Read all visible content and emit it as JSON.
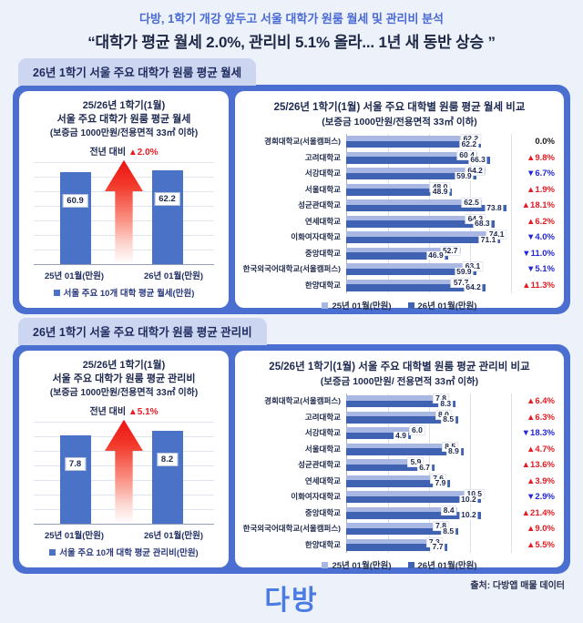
{
  "header": {
    "kicker": "다방, 1학기 개강 앞두고 서울 대학가 원룸 월세 및 관리비 분석",
    "headline": "“대학가 평균 월세 2.0%, 관리비 5.1% 올라... 1년 새 동반 상승 ”"
  },
  "colors": {
    "page_bg": "#edf1f9",
    "panel_blue": "#4a6fd1",
    "tab_bg": "#ccd6f1",
    "summary_bar": "#4a73c8",
    "series_prev": "#a9b8e3",
    "series_curr": "#3f63b2",
    "up_red": "#e31b22",
    "down_blue": "#2326d6",
    "flat_black": "#1b1b1b",
    "kicker_blue": "#4a6bd6",
    "logo_blue": "#4a7ce4"
  },
  "sections": [
    {
      "tab": "26년 1학기 서울 주요 대학가 원룸 평균 월세",
      "mini": {
        "title_lines": [
          "25/26년 1학기(1월)",
          "서울 주요 대학가 원룸 평균 월세",
          "(보증금 1000만원/전용면적 33㎡ 이하)"
        ],
        "yoy_label": "전년 대비",
        "yoy_change": "▲2.0%",
        "categories": [
          "25년 01월(만원)",
          "26년 01월(만원)"
        ],
        "values": [
          "60.9",
          "62.2"
        ],
        "ymax": 68,
        "legend": "서울 주요 10개 대학 평균 월세(만원)"
      },
      "compare": {
        "title": "25/26년 1학기(1월) 서울 주요 대학별 원룸 평균 월세 비교",
        "subtitle": "(보증금 1000만원/전용면적 33㎡ 이하)",
        "xmax": 76,
        "legend": [
          "25년 01월(만원)",
          "26년 01월(만원)"
        ],
        "rows": [
          {
            "name": "경희대학교(서울캠퍼스)",
            "prev": "62.2",
            "curr": "62.2",
            "change": "0.0%",
            "dir": "flat"
          },
          {
            "name": "고려대학교",
            "prev": "60.4",
            "curr": "66.3",
            "change": "▲9.8%",
            "dir": "up"
          },
          {
            "name": "서강대학교",
            "prev": "64.2",
            "curr": "59.9",
            "change": "▼6.7%",
            "dir": "down"
          },
          {
            "name": "서울대학교",
            "prev": "48.0",
            "curr": "48.9",
            "change": "▲1.9%",
            "dir": "up"
          },
          {
            "name": "성균관대학교",
            "prev": "62.5",
            "curr": "73.8",
            "change": "▲18.1%",
            "dir": "up"
          },
          {
            "name": "연세대학교",
            "prev": "64.3",
            "curr": "68.3",
            "change": "▲6.2%",
            "dir": "up"
          },
          {
            "name": "이화여자대학교",
            "prev": "74.1",
            "curr": "71.1",
            "change": "▼4.0%",
            "dir": "down"
          },
          {
            "name": "중앙대학교",
            "prev": "52.7",
            "curr": "46.9",
            "change": "▼11.0%",
            "dir": "down"
          },
          {
            "name": "한국외국어대학교(서울캠퍼스)",
            "prev": "63.1",
            "curr": "59.9",
            "change": "▼5.1%",
            "dir": "down"
          },
          {
            "name": "한양대학교",
            "prev": "57.7",
            "curr": "64.2",
            "change": "▲11.3%",
            "dir": "up"
          }
        ]
      }
    },
    {
      "tab": "26년 1학기 서울 주요 대학가 원룸 평균 관리비",
      "mini": {
        "title_lines": [
          "25/26년 1학기(1월)",
          "서울 주요 대학가 원룸 평균 관리비",
          "(보증금 1000만원/전용면적 33㎡ 이하)"
        ],
        "yoy_label": "전년 대비",
        "yoy_change": "▲5.1%",
        "categories": [
          "25년 01월(만원)",
          "26년 01월(만원)"
        ],
        "values": [
          "7.8",
          "8.2"
        ],
        "ymax": 9,
        "legend": "서울 주요 10개 대학 평균 관리비(만원)"
      },
      "compare": {
        "title": "25/26년 1학기(1월) 서울 주요 대학별 원룸 평균 관리비 비교",
        "subtitle": "(보증금 1000만원/ 전용면적 33㎡ 이하)",
        "xmax": 12.5,
        "legend": [
          "25년 01월(만원)",
          "26년 01월(만원)"
        ],
        "rows": [
          {
            "name": "경희대학교(서울캠퍼스)",
            "prev": "7.8",
            "curr": "8.3",
            "change": "▲6.4%",
            "dir": "up"
          },
          {
            "name": "고려대학교",
            "prev": "8.0",
            "curr": "8.5",
            "change": "▲6.3%",
            "dir": "up"
          },
          {
            "name": "서강대학교",
            "prev": "6.0",
            "curr": "4.9",
            "change": "▼18.3%",
            "dir": "down"
          },
          {
            "name": "서울대학교",
            "prev": "8.5",
            "curr": "8.9",
            "change": "▲4.7%",
            "dir": "up"
          },
          {
            "name": "성균관대학교",
            "prev": "5.9",
            "curr": "6.7",
            "change": "▲13.6%",
            "dir": "up"
          },
          {
            "name": "연세대학교",
            "prev": "7.6",
            "curr": "7.9",
            "change": "▲3.9%",
            "dir": "up"
          },
          {
            "name": "이화여자대학교",
            "prev": "10.5",
            "curr": "10.2",
            "change": "▼2.9%",
            "dir": "down"
          },
          {
            "name": "중앙대학교",
            "prev": "8.4",
            "curr": "10.2",
            "change": "▲21.4%",
            "dir": "up"
          },
          {
            "name": "한국외국어대학교(서울캠퍼스)",
            "prev": "7.8",
            "curr": "8.5",
            "change": "▲9.0%",
            "dir": "up"
          },
          {
            "name": "한양대학교",
            "prev": "7.3",
            "curr": "7.7",
            "change": "▲5.5%",
            "dir": "up"
          }
        ]
      }
    }
  ],
  "footer": {
    "logo": "다방",
    "source": "출처: 다방앱 매물 데이터"
  },
  "chart_data": [
    {
      "type": "bar",
      "title": "25/26년 1학기(1월) 서울 주요 대학가 원룸 평균 월세 (보증금 1000만원/전용면적 33㎡ 이하)",
      "categories": [
        "25년 01월(만원)",
        "26년 01월(만원)"
      ],
      "values": [
        60.9,
        62.2
      ],
      "annotation": "전년 대비 ▲2.0%",
      "legend": [
        "서울 주요 10개 대학 평균 월세(만원)"
      ],
      "ylim": [
        0,
        68
      ],
      "grid": true
    },
    {
      "type": "bar",
      "orientation": "horizontal",
      "title": "25/26년 1학기(1월) 서울 주요 대학별 원룸 평균 월세 비교 (보증금 1000만원/전용면적 33㎡ 이하)",
      "categories": [
        "경희대학교(서울캠퍼스)",
        "고려대학교",
        "서강대학교",
        "서울대학교",
        "성균관대학교",
        "연세대학교",
        "이화여자대학교",
        "중앙대학교",
        "한국외국어대학교(서울캠퍼스)",
        "한양대학교"
      ],
      "series": [
        {
          "name": "25년 01월(만원)",
          "values": [
            62.2,
            60.4,
            64.2,
            48.0,
            62.5,
            64.3,
            74.1,
            52.7,
            63.1,
            57.7
          ]
        },
        {
          "name": "26년 01월(만원)",
          "values": [
            62.2,
            66.3,
            59.9,
            48.9,
            73.8,
            68.3,
            71.1,
            46.9,
            59.9,
            64.2
          ]
        }
      ],
      "change_labels": [
        "0.0%",
        "▲9.8%",
        "▼6.7%",
        "▲1.9%",
        "▲18.1%",
        "▲6.2%",
        "▼4.0%",
        "▼11.0%",
        "▼5.1%",
        "▲11.3%"
      ],
      "xlim": [
        0,
        76
      ],
      "legend_position": "bottom",
      "grid": true
    },
    {
      "type": "bar",
      "title": "25/26년 1학기(1월) 서울 주요 대학가 원룸 평균 관리비 (보증금 1000만원/전용면적 33㎡ 이하)",
      "categories": [
        "25년 01월(만원)",
        "26년 01월(만원)"
      ],
      "values": [
        7.8,
        8.2
      ],
      "annotation": "전년 대비 ▲5.1%",
      "legend": [
        "서울 주요 10개 대학 평균 관리비(만원)"
      ],
      "ylim": [
        0,
        9
      ],
      "grid": true
    },
    {
      "type": "bar",
      "orientation": "horizontal",
      "title": "25/26년 1학기(1월) 서울 주요 대학별 원룸 평균 관리비 비교 (보증금 1000만원/ 전용면적 33㎡ 이하)",
      "categories": [
        "경희대학교(서울캠퍼스)",
        "고려대학교",
        "서강대학교",
        "서울대학교",
        "성균관대학교",
        "연세대학교",
        "이화여자대학교",
        "중앙대학교",
        "한국외국어대학교(서울캠퍼스)",
        "한양대학교"
      ],
      "series": [
        {
          "name": "25년 01월(만원)",
          "values": [
            7.8,
            8.0,
            6.0,
            8.5,
            5.9,
            7.6,
            10.5,
            8.4,
            7.8,
            7.3
          ]
        },
        {
          "name": "26년 01월(만원)",
          "values": [
            8.3,
            8.5,
            4.9,
            8.9,
            6.7,
            7.9,
            10.2,
            10.2,
            8.5,
            7.7
          ]
        }
      ],
      "change_labels": [
        "▲6.4%",
        "▲6.3%",
        "▼18.3%",
        "▲4.7%",
        "▲13.6%",
        "▲3.9%",
        "▼2.9%",
        "▲21.4%",
        "▲9.0%",
        "▲5.5%"
      ],
      "xlim": [
        0,
        12.5
      ],
      "legend_position": "bottom",
      "grid": true
    }
  ]
}
